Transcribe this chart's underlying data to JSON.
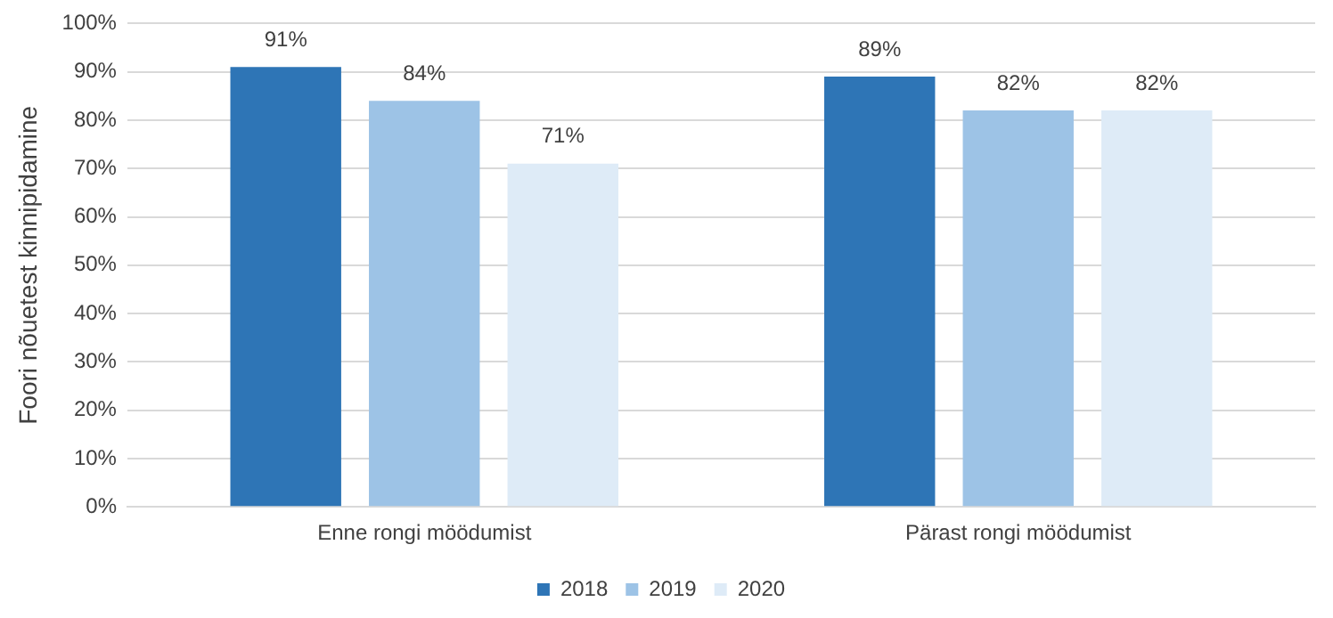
{
  "chart_data": {
    "type": "bar",
    "ylabel": "Foori nõuetest kinnipidamine",
    "categories": [
      "Enne rongi möödumist",
      "Pärast rongi möödumist"
    ],
    "series": [
      {
        "name": "2018",
        "color": "#2e75b6",
        "values": [
          91,
          89
        ],
        "value_labels": [
          "91%",
          "89%"
        ]
      },
      {
        "name": "2019",
        "color": "#9dc3e6",
        "values": [
          84,
          82
        ],
        "value_labels": [
          "84%",
          "82%"
        ]
      },
      {
        "name": "2020",
        "color": "#deebf7",
        "values": [
          71,
          82
        ],
        "value_labels": [
          "71%",
          "82%"
        ]
      }
    ],
    "ylim": [
      0,
      100
    ],
    "yticks": [
      {
        "value": 0,
        "label": "0%"
      },
      {
        "value": 10,
        "label": "10%"
      },
      {
        "value": 20,
        "label": "20%"
      },
      {
        "value": 30,
        "label": "30%"
      },
      {
        "value": 40,
        "label": "40%"
      },
      {
        "value": 50,
        "label": "50%"
      },
      {
        "value": 60,
        "label": "60%"
      },
      {
        "value": 70,
        "label": "70%"
      },
      {
        "value": 80,
        "label": "80%"
      },
      {
        "value": 90,
        "label": "90%"
      },
      {
        "value": 100,
        "label": "100%"
      }
    ],
    "grid": "y",
    "legend": "bottom"
  }
}
